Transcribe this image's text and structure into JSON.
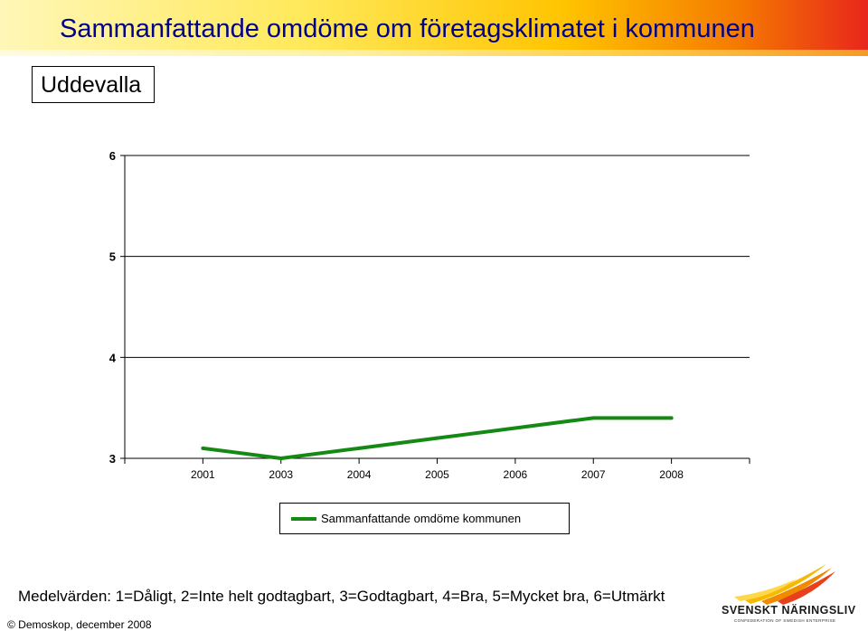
{
  "header": {
    "title": "Sammanfattande omdöme om företagsklimatet i kommunen",
    "municipality": "Uddevalla"
  },
  "chart_data": {
    "type": "line",
    "categories": [
      "2001",
      "2003",
      "2004",
      "2005",
      "2006",
      "2007",
      "2008"
    ],
    "series": [
      {
        "name": "Sammanfattande omdöme kommunen",
        "values": [
          3.1,
          3.0,
          3.1,
          3.2,
          3.3,
          3.4,
          3.4
        ],
        "color": "#148a14"
      }
    ],
    "yticks": [
      "3",
      "4",
      "5",
      "6"
    ],
    "ylim": [
      3,
      6
    ],
    "grid": true,
    "legend_position": "bottom"
  },
  "footnote": "Medelvärden: 1=Dåligt, 2=Inte helt godtagbart, 3=Godtagbart, 4=Bra, 5=Mycket bra, 6=Utmärkt",
  "copyright": "© Demoskop, december 2008",
  "logo": {
    "name": "SVENSKT NÄRINGSLIV",
    "tagline": "CONFEDERATION OF SWEDISH ENTERPRISE"
  }
}
